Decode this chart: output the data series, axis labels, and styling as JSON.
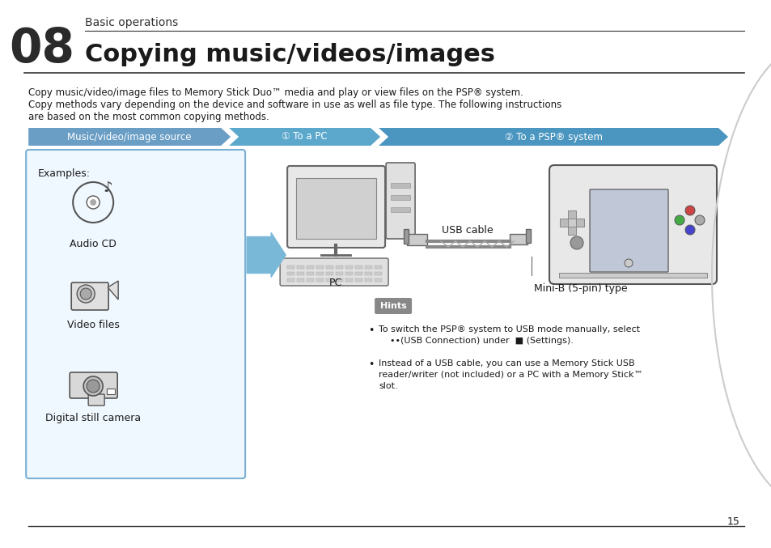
{
  "bg_color": "#ffffff",
  "page_number": "15",
  "chapter_number": "08",
  "chapter_subtitle": "Basic operations",
  "chapter_title": "Copying music/videos/images",
  "intro_text_line1": "Copy music/video/image files to Memory Stick Duo™ media and play or view files on the PSP® system.",
  "intro_text_line2": "Copy methods vary depending on the device and software in use as well as file type. The following instructions",
  "intro_text_line3": "are based on the most common copying methods.",
  "header_col1": "Music/video/image source",
  "header_col2": "① To a PC",
  "header_col3": "② To a PSP® system",
  "header_bg1": "#6a9ec5",
  "header_bg2": "#6aaccf",
  "header_bg3": "#5b9ec9",
  "examples_label": "Examples:",
  "label_audio": "Audio CD",
  "label_video": "Video files",
  "label_camera": "Digital still camera",
  "label_pc": "PC",
  "label_usb": "USB cable",
  "label_minib": "Mini-B (5-pin) type",
  "hints_title": "Hints",
  "hint1": "To switch the PSP® system to USB mode manually, select\n    ••(USB Connection) under   (Settings).",
  "hint2": "Instead of a USB cable, you can use a Memory Stick USB\nreader/writer (not included) or a PC with a Memory Stick™\nslot.",
  "box_border_color": "#7ab0d4",
  "text_color": "#1a1a1a",
  "arrow_color": "#6aaccf"
}
